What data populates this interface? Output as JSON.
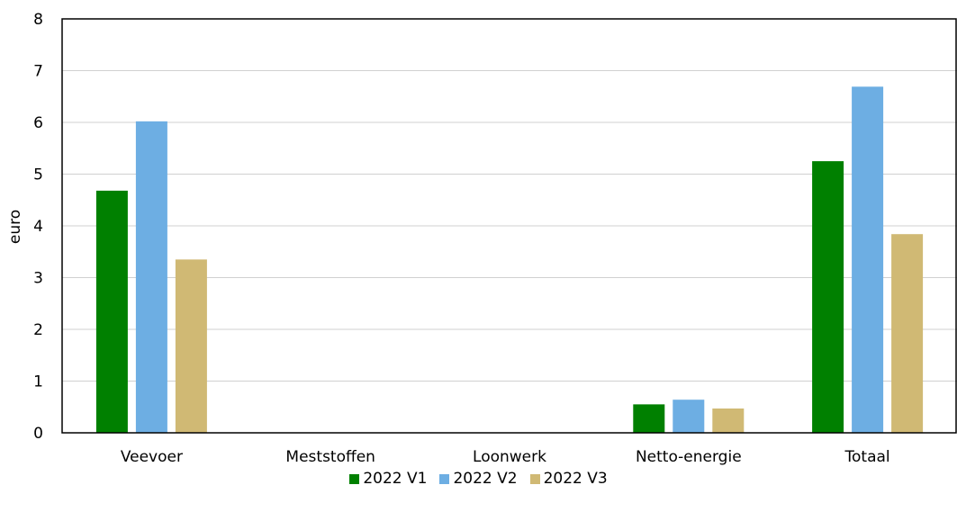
{
  "chart_data": {
    "type": "bar",
    "title": "",
    "xlabel": "",
    "ylabel": "euro",
    "ylim": [
      0,
      8
    ],
    "yticks": [
      "0",
      "1",
      "2",
      "3",
      "4",
      "5",
      "6",
      "7",
      "8"
    ],
    "grid": true,
    "legend_position": "bottom",
    "categories": [
      "Veevoer",
      "Meststoffen",
      "Loonwerk",
      "Netto-energie",
      "Totaal"
    ],
    "series": [
      {
        "name": "2022 V1",
        "color": "#008000",
        "values": [
          4.68,
          0.0,
          0.0,
          0.55,
          5.25
        ]
      },
      {
        "name": "2022 V2",
        "color": "#6daee3",
        "values": [
          6.02,
          0.0,
          0.0,
          0.64,
          6.69
        ]
      },
      {
        "name": "2022 V3",
        "color": "#d0b974",
        "values": [
          3.35,
          0.0,
          0.0,
          0.47,
          3.84
        ]
      }
    ]
  }
}
